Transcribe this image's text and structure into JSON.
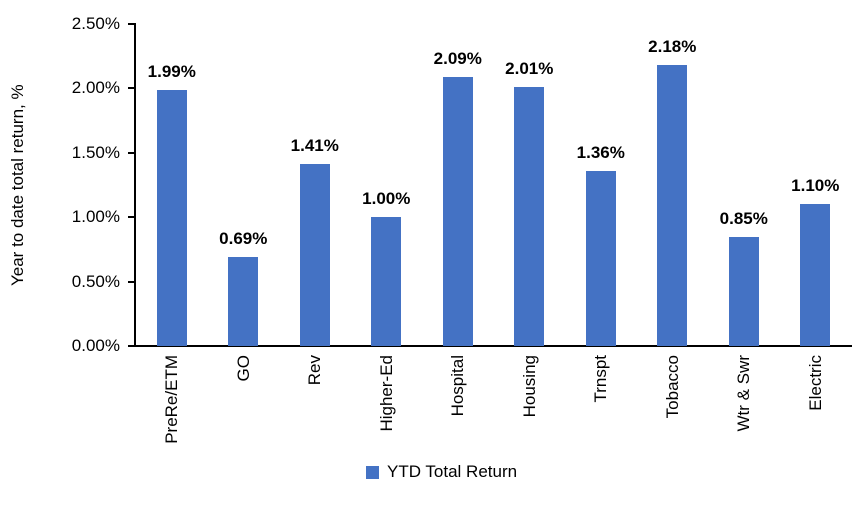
{
  "chart_data": {
    "type": "bar",
    "title": "",
    "ylabel": "Year to date total return, %",
    "xlabel": "",
    "categories": [
      "PreRe/ETM",
      "GO",
      "Rev",
      "Higher-Ed",
      "Hospital",
      "Housing",
      "Trnspt",
      "Tobacco",
      "Wtr & Swr",
      "Electric"
    ],
    "values": [
      1.99,
      0.69,
      1.41,
      1.0,
      2.09,
      2.01,
      1.36,
      2.18,
      0.85,
      1.1
    ],
    "data_labels": [
      "1.99%",
      "0.69%",
      "1.41%",
      "1.00%",
      "2.09%",
      "2.01%",
      "1.36%",
      "2.18%",
      "0.85%",
      "1.10%"
    ],
    "ylim": [
      0,
      2.5
    ],
    "ytick_labels": [
      "0.00%",
      "0.50%",
      "1.00%",
      "1.50%",
      "2.00%",
      "2.50%"
    ],
    "ytick_values": [
      0,
      0.5,
      1.0,
      1.5,
      2.0,
      2.5
    ],
    "grid": false,
    "bar_color": "#4472C4",
    "axis_color": "#000000",
    "label_color": "#000000",
    "legend": {
      "position": "bottom",
      "entries": [
        {
          "label": "YTD Total Return",
          "color": "#4472C4"
        }
      ]
    }
  }
}
